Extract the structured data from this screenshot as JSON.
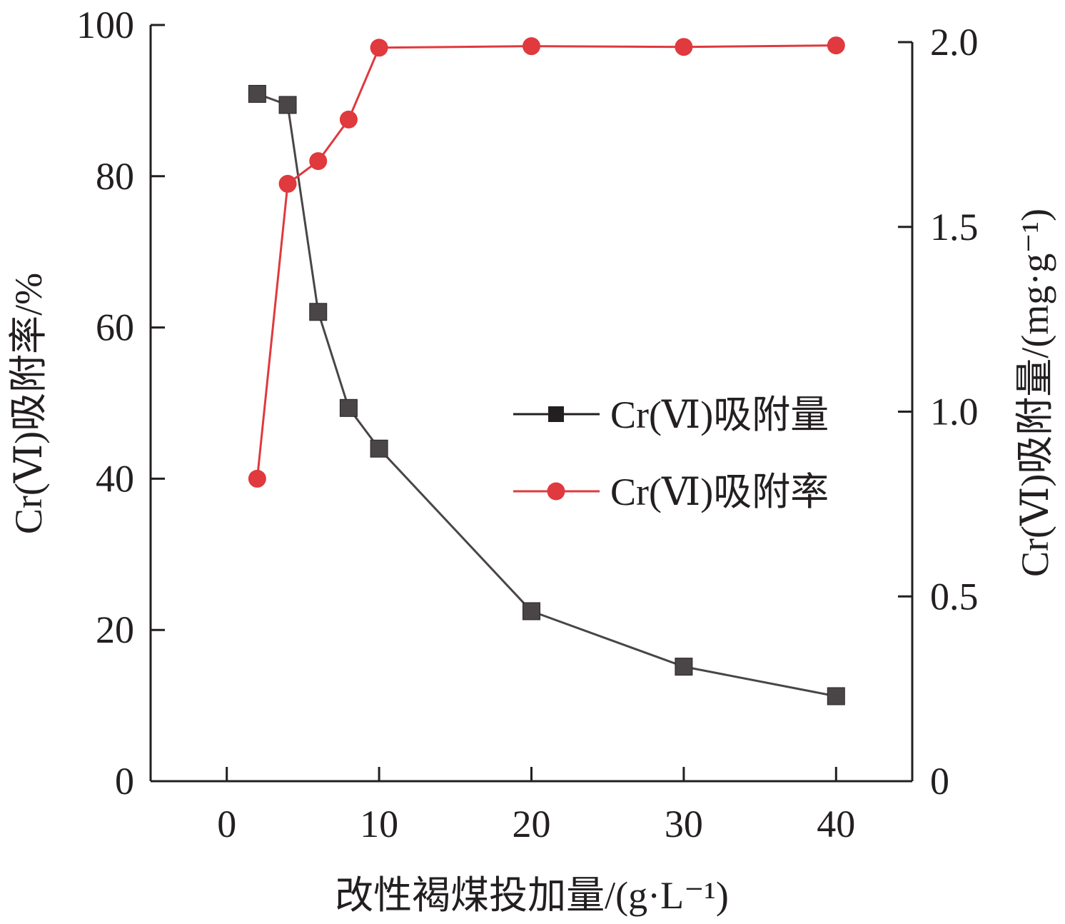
{
  "chart_data": {
    "type": "line",
    "xlabel": "改性褐煤投加量/(g·L⁻¹)",
    "ylabel_left": "Cr(Ⅵ)吸附率/%",
    "ylabel_right": "Cr(Ⅵ)吸附量/(mg·g⁻¹)",
    "xlim": [
      -5,
      45
    ],
    "ylim_left": [
      0,
      100
    ],
    "ylim_right": [
      0,
      2.0
    ],
    "x_ticks": [
      "0",
      "10",
      "20",
      "30",
      "40"
    ],
    "y_left_ticks": [
      "0",
      "20",
      "40",
      "60",
      "80",
      "100"
    ],
    "y_right_ticks": [
      "0",
      "0.5",
      "1.0",
      "1.5",
      "2.0"
    ],
    "legend_position": "right-center",
    "series": [
      {
        "name": "Cr(Ⅵ)吸附量",
        "axis": "right",
        "marker": "square",
        "color": "#4a4546",
        "x": [
          2,
          4,
          6,
          8,
          10,
          20,
          30,
          40
        ],
        "y": [
          1.86,
          1.83,
          1.27,
          1.01,
          0.9,
          0.46,
          0.31,
          0.23
        ]
      },
      {
        "name": "Cr(Ⅵ)吸附率",
        "axis": "left",
        "marker": "circle",
        "color": "#e0393e",
        "x": [
          2,
          4,
          6,
          8,
          10,
          20,
          30,
          40
        ],
        "y": [
          40.0,
          79.0,
          82.0,
          87.5,
          97.0,
          97.2,
          97.1,
          97.3
        ]
      }
    ]
  }
}
